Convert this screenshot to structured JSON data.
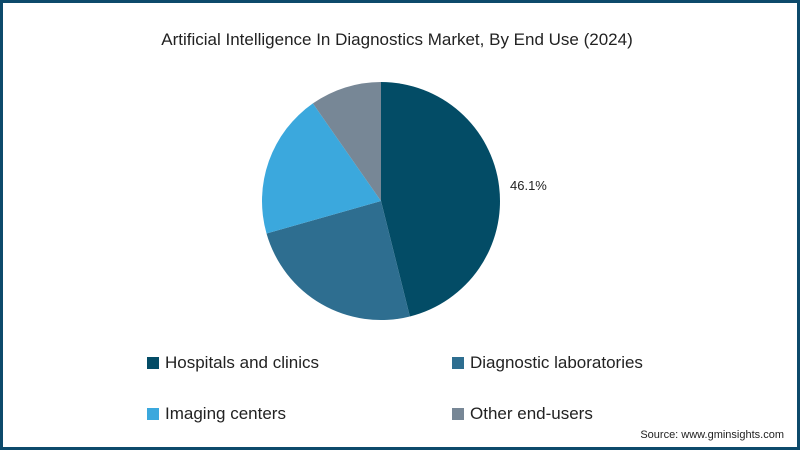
{
  "chart_data": {
    "type": "pie",
    "title": "Artificial Intelligence In Diagnostics Market, By End Use (2024)",
    "categories": [
      "Hospitals and clinics",
      "Diagnostic laboratories",
      "Imaging centers",
      "Other end-users"
    ],
    "values": [
      46.1,
      24.5,
      19.7,
      9.7
    ],
    "unit": "%",
    "colors": [
      "#034c66",
      "#2e6e90",
      "#3ba8dd",
      "#778796"
    ],
    "data_labels": [
      {
        "category": "Hospitals and clinics",
        "text": "46.1%"
      }
    ],
    "legend_position": "bottom",
    "start_angle": "12 o'clock, clockwise"
  },
  "title": "Artificial Intelligence In Diagnostics Market, By End Use (2024)",
  "label_hospitals": "46.1%",
  "legend": [
    {
      "label": "Hospitals and clinics",
      "color": "#034c66"
    },
    {
      "label": "Diagnostic laboratories",
      "color": "#2e6e90"
    },
    {
      "label": "Imaging centers",
      "color": "#3ba8dd"
    },
    {
      "label": "Other end-users",
      "color": "#778796"
    }
  ],
  "source": "Source: www.gminsights.com",
  "frame_color": "#0d4a6b"
}
